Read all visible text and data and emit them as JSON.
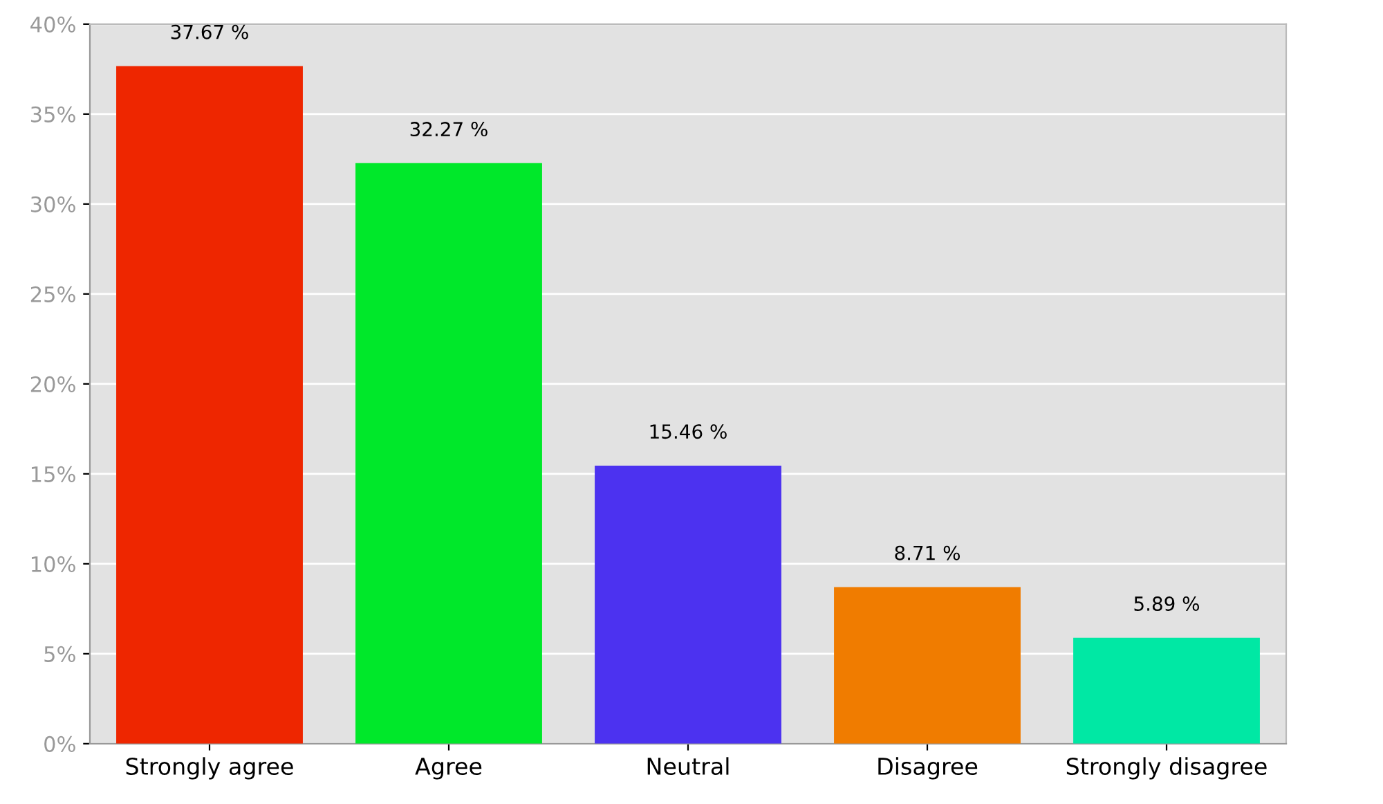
{
  "chart_data": {
    "type": "bar",
    "categories": [
      "Strongly agree",
      "Agree",
      "Neutral",
      "Disagree",
      "Strongly disagree"
    ],
    "values": [
      37.67,
      32.27,
      15.46,
      8.71,
      5.89
    ],
    "colors": [
      "#ee2600",
      "#00e82a",
      "#4c32f0",
      "#f07c00",
      "#00e8a4"
    ],
    "value_labels": [
      "37.67 %",
      "32.27 %",
      "15.46 %",
      "8.71 %",
      "5.89 %"
    ],
    "ylim": [
      0,
      40
    ],
    "yticks": [
      {
        "value": 0,
        "label": "0%"
      },
      {
        "value": 5,
        "label": "5%"
      },
      {
        "value": 10,
        "label": "10%"
      },
      {
        "value": 15,
        "label": "15%"
      },
      {
        "value": 20,
        "label": "20%"
      },
      {
        "value": 25,
        "label": "25%"
      },
      {
        "value": 30,
        "label": "30%"
      },
      {
        "value": 35,
        "label": "35%"
      },
      {
        "value": 40,
        "label": "40%"
      }
    ],
    "grid": "y",
    "legend": false
  }
}
